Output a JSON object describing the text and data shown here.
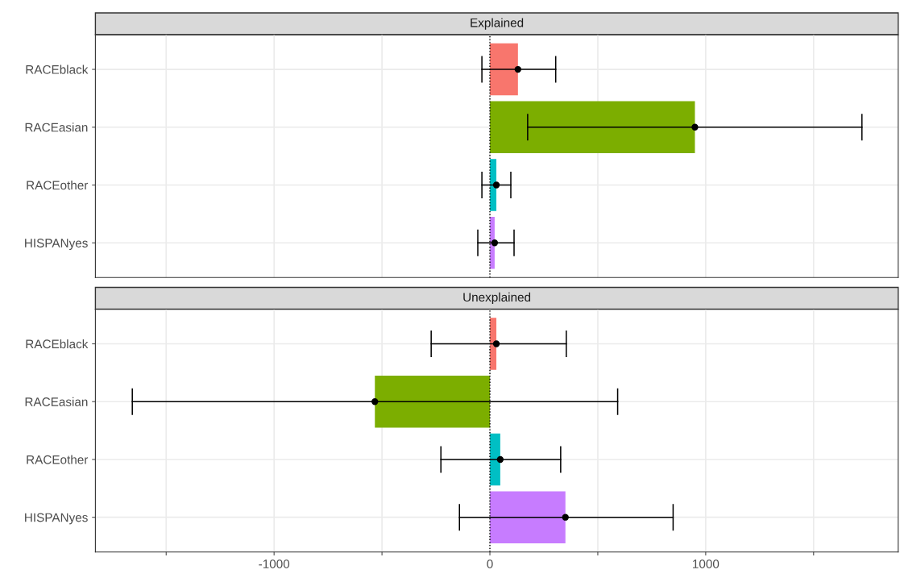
{
  "chart_data": [
    {
      "type": "bar",
      "title": "Explained",
      "orientation": "horizontal",
      "categories": [
        "RACEblack",
        "RACEasian",
        "RACEother",
        "HISPANyes"
      ],
      "series": [
        {
          "values": [
            130,
            950,
            30,
            22
          ],
          "colors": [
            "#f8766d",
            "#7cae00",
            "#00bfc4",
            "#c77cff"
          ]
        },
        {
          "type": "scatter",
          "values": [
            130,
            950,
            30,
            22
          ],
          "color": "#000000",
          "marker": "circle",
          "errors": [
            [
              -37,
              305
            ],
            [
              175,
              1724
            ],
            [
              -37,
              97
            ],
            [
              -56,
              112
            ]
          ]
        }
      ],
      "xlim": [
        -1828,
        1892
      ],
      "xticks": [
        {
          "value": -1500,
          "label": null
        },
        -1000,
        {
          "value": -500,
          "label": null
        },
        0,
        {
          "value": 500,
          "label": null
        },
        1000,
        {
          "value": 1500,
          "label": null
        }
      ],
      "ref_lines": [
        {
          "axis": "x",
          "value": 0,
          "line_style": "dotted",
          "color": "#000000"
        }
      ],
      "grid": true,
      "tick_labels": "y"
    },
    {
      "type": "bar",
      "title": "Unexplained",
      "orientation": "horizontal",
      "categories": [
        "RACEblack",
        "RACEasian",
        "RACEother",
        "HISPANyes"
      ],
      "series": [
        {
          "values": [
            30,
            -533,
            48,
            350
          ],
          "colors": [
            "#f8766d",
            "#7cae00",
            "#00bfc4",
            "#c77cff"
          ]
        },
        {
          "type": "scatter",
          "values": [
            30,
            -533,
            48,
            350
          ],
          "color": "#000000",
          "marker": "circle",
          "errors": [
            [
              -272,
              354
            ],
            [
              -1657,
              592
            ],
            [
              -227,
              328
            ],
            [
              -141,
              849
            ]
          ]
        }
      ],
      "xlim": [
        -1828,
        1892
      ],
      "xticks": [
        {
          "value": -1500,
          "label": null
        },
        -1000,
        {
          "value": -500,
          "label": null
        },
        0,
        {
          "value": 500,
          "label": null
        },
        1000,
        {
          "value": 1500,
          "label": null
        }
      ],
      "ref_lines": [
        {
          "axis": "x",
          "value": 0,
          "line_style": "dotted",
          "color": "#000000"
        }
      ],
      "grid": true
    }
  ]
}
